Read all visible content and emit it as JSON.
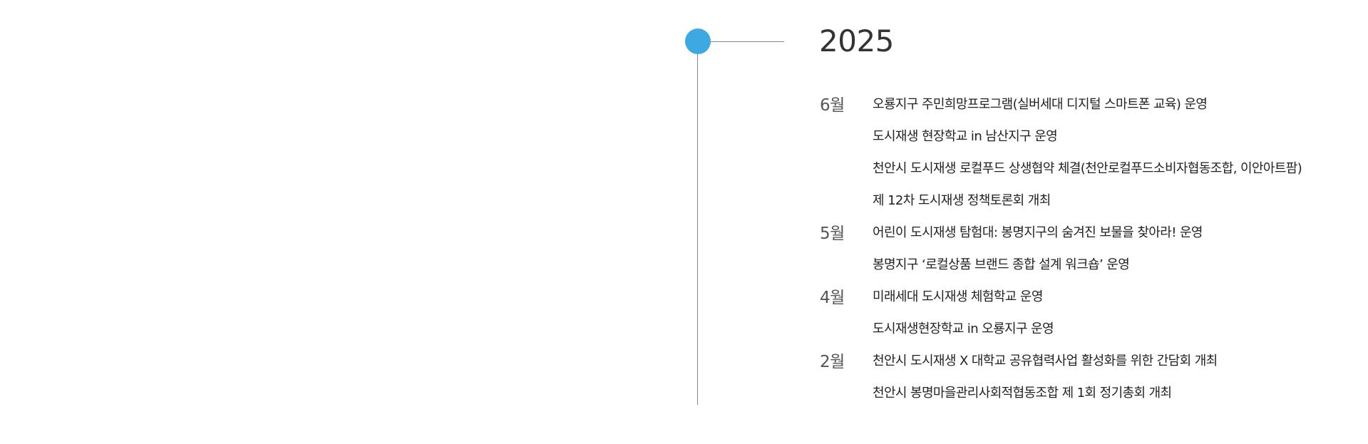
{
  "timeline": {
    "year": "2025",
    "months": [
      {
        "month": "6월",
        "events": [
          "오룡지구 주민희망프로그램(실버세대 디지털 스마트폰 교육) 운영",
          "도시재생 현장학교 in 남산지구 운영",
          "천안시 도시재생 로컬푸드 상생협약 체결(천안로컬푸드소비자협동조합, 이안아트팜)",
          "제 12차 도시재생 정책토론회 개최"
        ]
      },
      {
        "month": "5월",
        "events": [
          "어린이 도시재생 탐험대: 봉명지구의 숨겨진 보물을 찾아라! 운영",
          "봉명지구 ‘로컬상품 브랜드 종합 설계 워크숍’ 운영"
        ]
      },
      {
        "month": "4월",
        "events": [
          "미래세대 도시재생 체험학교 운영",
          "도시재생현장학교 in 오룡지구 운영"
        ]
      },
      {
        "month": "2월",
        "events": [
          "천안시 도시재생 X 대학교 공유협력사업 활성화를 위한 간담회 개최",
          "천안시 봉명마을관리사회적협동조합 제 1회 정기총회 개최"
        ]
      }
    ],
    "colors": {
      "dot": "#3ca9e2",
      "line": "#888888"
    }
  }
}
